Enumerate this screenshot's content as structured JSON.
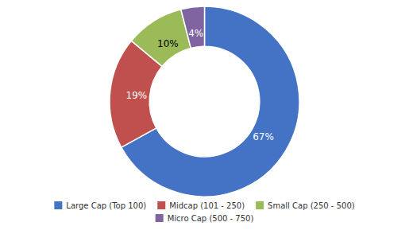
{
  "chart_data": {
    "type": "donut",
    "categories": [
      "Large Cap (Top 100)",
      "Midcap (101 - 250)",
      "Small Cap (250 - 500)",
      "Micro Cap (500 - 750)"
    ],
    "values": [
      67,
      19,
      10,
      4
    ],
    "value_labels": [
      "67%",
      "19%",
      "10%",
      "4%"
    ],
    "colors": [
      "#4472C4",
      "#C0504D",
      "#9BBB59",
      "#8064A2"
    ],
    "data_labels": true,
    "legend": "bottom"
  }
}
